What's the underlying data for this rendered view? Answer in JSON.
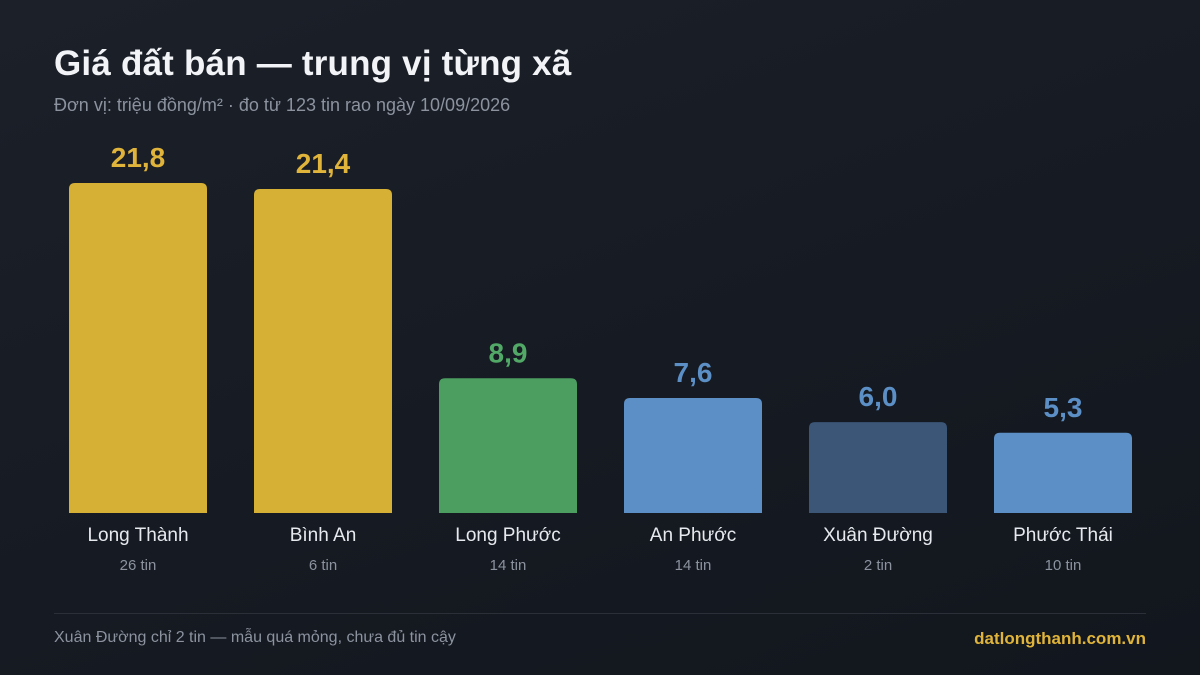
{
  "header": {
    "title": "Giá đất bán — trung vị từng xã",
    "subtitle": "Đơn vị: triệu đồng/m² · đo từ 123 tin rao ngày 10/09/2026"
  },
  "chart_data": {
    "type": "bar",
    "categories": [
      "Long Thành",
      "Bình An",
      "Long Phước",
      "An Phước",
      "Xuân Đường",
      "Phước Thái"
    ],
    "values": [
      21.8,
      21.4,
      8.9,
      7.6,
      6.0,
      5.3
    ],
    "value_labels": [
      "21,8",
      "21,4",
      "8,9",
      "7,6",
      "6,0",
      "5,3"
    ],
    "counts": [
      "26 tin",
      "6 tin",
      "14 tin",
      "14 tin",
      "2 tin",
      "10 tin"
    ],
    "bar_colors": [
      "#d6b035",
      "#d6b035",
      "#4b9e60",
      "#5b8fc6",
      "#3b5677",
      "#5b8fc6"
    ],
    "value_label_colors": [
      "#e0b43a",
      "#e0b43a",
      "#52a866",
      "#5b8fc6",
      "#5b8fc6",
      "#5b8fc6"
    ],
    "ylim": [
      0,
      21.8
    ],
    "grid": false,
    "legend": "none"
  },
  "footer": {
    "note": "Xuân Đường chỉ 2 tin — mẫu quá mỏng, chưa đủ tin cậy",
    "brand": "datlongthanh.com.vn"
  },
  "colors": {
    "background": "#181c24",
    "title": "#f1f3f6",
    "muted": "#8c939f",
    "brand": "#e0b43a"
  }
}
